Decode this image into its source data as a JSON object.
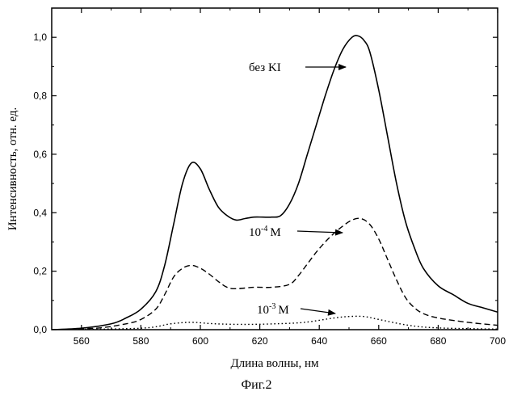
{
  "figure_caption": "Фиг.2",
  "chart_data": {
    "type": "line",
    "xlabel": "Длина волны, нм",
    "ylabel": "Интенсивность, отн. ед.",
    "xlim": [
      550,
      700
    ],
    "ylim": [
      0,
      1.1
    ],
    "x_ticks": [
      560,
      580,
      600,
      620,
      640,
      660,
      680,
      700
    ],
    "x_tick_labels": [
      "560",
      "580",
      "600",
      "620",
      "640",
      "660",
      "680",
      "700"
    ],
    "y_ticks": [
      0,
      0.2,
      0.4,
      0.6,
      0.8,
      1.0
    ],
    "y_tick_labels": [
      "0,0",
      "0,2",
      "0,4",
      "0,6",
      "0,8",
      "1,0"
    ],
    "grid": false,
    "legend": "none",
    "series": [
      {
        "style": "solid",
        "x": [
          550,
          560,
          570,
          575,
          580,
          585,
          588,
          591,
          594,
          597,
          600,
          603,
          606,
          609,
          612,
          615,
          618,
          621,
          624,
          627,
          630,
          633,
          636,
          639,
          642,
          645,
          648,
          651,
          653,
          655,
          657,
          660,
          663,
          666,
          669,
          672,
          675,
          680,
          685,
          690,
          695,
          700
        ],
        "y": [
          0.0,
          0.005,
          0.02,
          0.04,
          0.07,
          0.13,
          0.22,
          0.36,
          0.5,
          0.57,
          0.55,
          0.48,
          0.42,
          0.39,
          0.375,
          0.38,
          0.385,
          0.385,
          0.385,
          0.39,
          0.43,
          0.5,
          0.6,
          0.7,
          0.8,
          0.89,
          0.96,
          1.0,
          1.005,
          0.99,
          0.95,
          0.82,
          0.66,
          0.5,
          0.37,
          0.28,
          0.21,
          0.15,
          0.12,
          0.09,
          0.075,
          0.06
        ]
      },
      {
        "style": "dashed",
        "x": [
          550,
          565,
          575,
          580,
          585,
          588,
          591,
          594,
          597,
          600,
          603,
          606,
          609,
          612,
          618,
          624,
          630,
          633,
          636,
          639,
          642,
          645,
          648,
          651,
          654,
          657,
          660,
          663,
          666,
          669,
          672,
          675,
          680,
          690,
          700
        ],
        "y": [
          0.0,
          0.005,
          0.02,
          0.035,
          0.07,
          0.12,
          0.18,
          0.21,
          0.22,
          0.21,
          0.19,
          0.165,
          0.145,
          0.14,
          0.145,
          0.145,
          0.155,
          0.185,
          0.225,
          0.265,
          0.3,
          0.33,
          0.355,
          0.375,
          0.38,
          0.36,
          0.31,
          0.24,
          0.17,
          0.11,
          0.075,
          0.055,
          0.04,
          0.025,
          0.015
        ]
      },
      {
        "style": "dotted",
        "x": [
          550,
          580,
          590,
          597,
          605,
          615,
          625,
          635,
          645,
          650,
          655,
          660,
          670,
          680,
          700
        ],
        "y": [
          0.0,
          0.005,
          0.02,
          0.025,
          0.02,
          0.018,
          0.02,
          0.025,
          0.04,
          0.045,
          0.045,
          0.035,
          0.015,
          0.006,
          0.002
        ]
      }
    ],
    "annotations": [
      {
        "label": "без KI",
        "points_to": {
          "x": 651,
          "y": 0.88
        }
      },
      {
        "label_base": "10",
        "label_exp": "-4",
        "label_unit": "M",
        "points_to": {
          "x": 651,
          "y": 0.33
        }
      },
      {
        "label_base": "10",
        "label_exp": "-3",
        "label_unit": "M",
        "points_to": {
          "x": 648,
          "y": 0.045
        }
      }
    ]
  }
}
